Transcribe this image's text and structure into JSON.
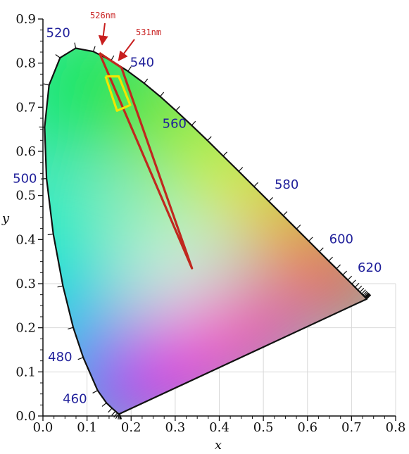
{
  "chart_data": {
    "type": "scatter",
    "title": "",
    "xlabel": "x",
    "ylabel": "y",
    "xlim": [
      0.0,
      0.8
    ],
    "ylim": [
      0.0,
      0.9
    ],
    "x_ticks": [
      "0.0",
      "0.1",
      "0.2",
      "0.3",
      "0.4",
      "0.5",
      "0.6",
      "0.7",
      "0.8"
    ],
    "y_ticks": [
      "0.0",
      "0.1",
      "0.2",
      "0.3",
      "0.4",
      "0.5",
      "0.6",
      "0.7",
      "0.8",
      "0.9"
    ],
    "grid": true,
    "spectral_locus": {
      "points": [
        [
          0.1741,
          0.005
        ],
        [
          0.1738,
          0.0049
        ],
        [
          0.1733,
          0.0048
        ],
        [
          0.1726,
          0.0048
        ],
        [
          0.1714,
          0.0051
        ],
        [
          0.1689,
          0.0069
        ],
        [
          0.1644,
          0.0109
        ],
        [
          0.1566,
          0.0177
        ],
        [
          0.144,
          0.0297
        ],
        [
          0.1241,
          0.0578
        ],
        [
          0.0913,
          0.1327
        ],
        [
          0.0687,
          0.2007
        ],
        [
          0.0454,
          0.295
        ],
        [
          0.0235,
          0.4127
        ],
        [
          0.0082,
          0.5384
        ],
        [
          0.0039,
          0.6548
        ],
        [
          0.0139,
          0.7502
        ],
        [
          0.0389,
          0.812
        ],
        [
          0.0743,
          0.8338
        ],
        [
          0.1142,
          0.8262
        ],
        [
          0.1547,
          0.8059
        ],
        [
          0.1929,
          0.7816
        ],
        [
          0.2296,
          0.7543
        ],
        [
          0.2658,
          0.7243
        ],
        [
          0.3016,
          0.6923
        ],
        [
          0.3373,
          0.6589
        ],
        [
          0.3731,
          0.6245
        ],
        [
          0.4087,
          0.5896
        ],
        [
          0.4441,
          0.5547
        ],
        [
          0.4788,
          0.5202
        ],
        [
          0.5125,
          0.4866
        ],
        [
          0.5448,
          0.4544
        ],
        [
          0.5752,
          0.4242
        ],
        [
          0.6029,
          0.3965
        ],
        [
          0.627,
          0.3725
        ],
        [
          0.6482,
          0.3514
        ],
        [
          0.6658,
          0.334
        ],
        [
          0.6801,
          0.3197
        ],
        [
          0.6915,
          0.3083
        ],
        [
          0.7006,
          0.2993
        ],
        [
          0.7079,
          0.292
        ],
        [
          0.714,
          0.2859
        ],
        [
          0.719,
          0.2809
        ],
        [
          0.723,
          0.277
        ],
        [
          0.726,
          0.274
        ],
        [
          0.7283,
          0.2717
        ],
        [
          0.73,
          0.27
        ],
        [
          0.7311,
          0.2689
        ],
        [
          0.732,
          0.268
        ],
        [
          0.7327,
          0.2673
        ],
        [
          0.7334,
          0.2666
        ],
        [
          0.734,
          0.266
        ],
        [
          0.7344,
          0.2656
        ],
        [
          0.7346,
          0.2654
        ],
        [
          0.7347,
          0.2653
        ]
      ],
      "line_color": "#111111"
    },
    "wavelength_labels": [
      {
        "text": "460",
        "x": 0.144,
        "y": 0.0297
      },
      {
        "text": "480",
        "x": 0.0913,
        "y": 0.1327
      },
      {
        "text": "500",
        "x": 0.0082,
        "y": 0.5384
      },
      {
        "text": "520",
        "x": 0.0743,
        "y": 0.8338
      },
      {
        "text": "540",
        "x": 0.2296,
        "y": 0.7543
      },
      {
        "text": "560",
        "x": 0.3731,
        "y": 0.6245
      },
      {
        "text": "580",
        "x": 0.5125,
        "y": 0.4866
      },
      {
        "text": "600",
        "x": 0.627,
        "y": 0.3725
      },
      {
        "text": "620",
        "x": 0.6915,
        "y": 0.3083
      }
    ],
    "label_color": "#1f1f9a",
    "series": [
      {
        "type": "polygon",
        "color": "#c0281e",
        "points": [
          [
            0.128,
            0.823
          ],
          [
            0.178,
            0.79
          ],
          [
            0.338,
            0.335
          ],
          [
            0.128,
            0.823
          ]
        ]
      },
      {
        "type": "polygon",
        "color": "#f2e600",
        "points": [
          [
            0.142,
            0.77
          ],
          [
            0.172,
            0.77
          ],
          [
            0.198,
            0.705
          ],
          [
            0.168,
            0.692
          ],
          [
            0.142,
            0.77
          ]
        ]
      }
    ],
    "annotations": [
      {
        "text": "526nm",
        "color": "#c81e1e",
        "arrow_to": [
          0.128,
          0.823
        ]
      },
      {
        "text": "531nm",
        "color": "#c81e1e",
        "arrow_to": [
          0.178,
          0.79
        ]
      }
    ]
  }
}
